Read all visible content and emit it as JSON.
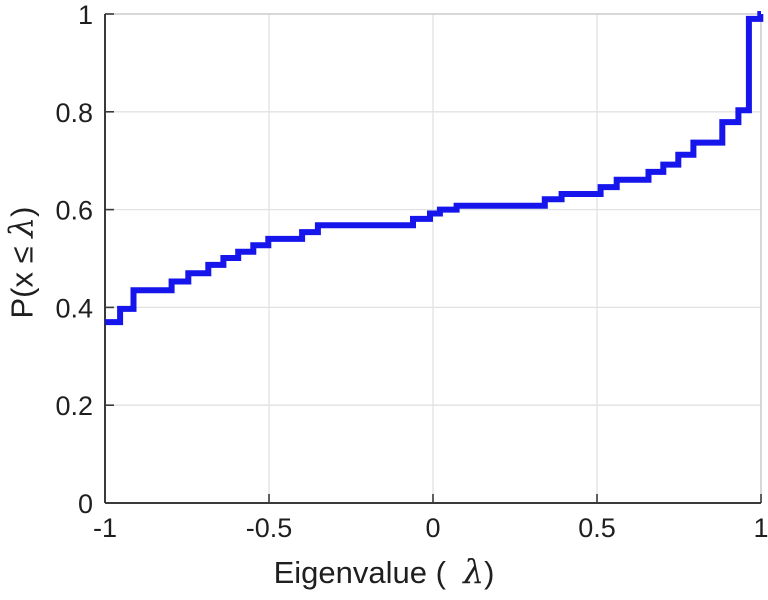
{
  "figure": {
    "background": "#ffffff",
    "xlabel": {
      "prefix": "Eigenvalue (  ",
      "lambda": "λ",
      "suffix": ")"
    },
    "ylabel": {
      "prefix": "P(x ≤ ",
      "lambda": "λ",
      "suffix": ")"
    }
  },
  "colors": {
    "line": "#1515ec",
    "grid": "#e2e2e2",
    "box_light": "#c4c4c4",
    "axis": "#3a3a3a",
    "text": "#1f1f1f"
  },
  "chart_data": {
    "type": "line",
    "style": "ecdf-stairs",
    "title": "",
    "xlabel": "Eigenvalue ( λ)",
    "ylabel": "P(x ≤ λ)",
    "xlim": [
      -1,
      1
    ],
    "ylim": [
      0,
      1
    ],
    "grid": true,
    "legend": null,
    "line_width": 6,
    "xticks": [
      -1,
      -0.5,
      0,
      0.5,
      1
    ],
    "xtick_labels": [
      "-1",
      "-0.5",
      "0",
      "0.5",
      "1"
    ],
    "yticks": [
      0,
      0.2,
      0.4,
      0.6,
      0.8,
      1
    ],
    "ytick_labels": [
      "0",
      "0.2",
      "0.4",
      "0.6",
      "0.8",
      "1"
    ],
    "grid_x": [
      -0.5,
      0,
      0.5
    ],
    "grid_y": [
      0.2,
      0.4,
      0.6,
      0.8,
      1
    ],
    "start": {
      "x": -1,
      "p": 0.37
    },
    "steps": [
      [
        -0.954,
        0.397
      ],
      [
        -0.913,
        0.435
      ],
      [
        -0.797,
        0.453
      ],
      [
        -0.746,
        0.47
      ],
      [
        -0.685,
        0.487
      ],
      [
        -0.639,
        0.501
      ],
      [
        -0.594,
        0.514
      ],
      [
        -0.548,
        0.527
      ],
      [
        -0.502,
        0.54
      ],
      [
        -0.399,
        0.554
      ],
      [
        -0.351,
        0.568
      ],
      [
        -0.061,
        0.581
      ],
      [
        -0.009,
        0.592
      ],
      [
        0.021,
        0.6
      ],
      [
        0.072,
        0.608
      ],
      [
        0.341,
        0.621
      ],
      [
        0.392,
        0.632
      ],
      [
        0.511,
        0.646
      ],
      [
        0.56,
        0.661
      ],
      [
        0.657,
        0.677
      ],
      [
        0.702,
        0.692
      ],
      [
        0.748,
        0.712
      ],
      [
        0.794,
        0.737
      ],
      [
        0.882,
        0.779
      ],
      [
        0.931,
        0.803
      ],
      [
        0.963,
        0.99
      ],
      [
        0.998,
        1.0
      ]
    ]
  }
}
